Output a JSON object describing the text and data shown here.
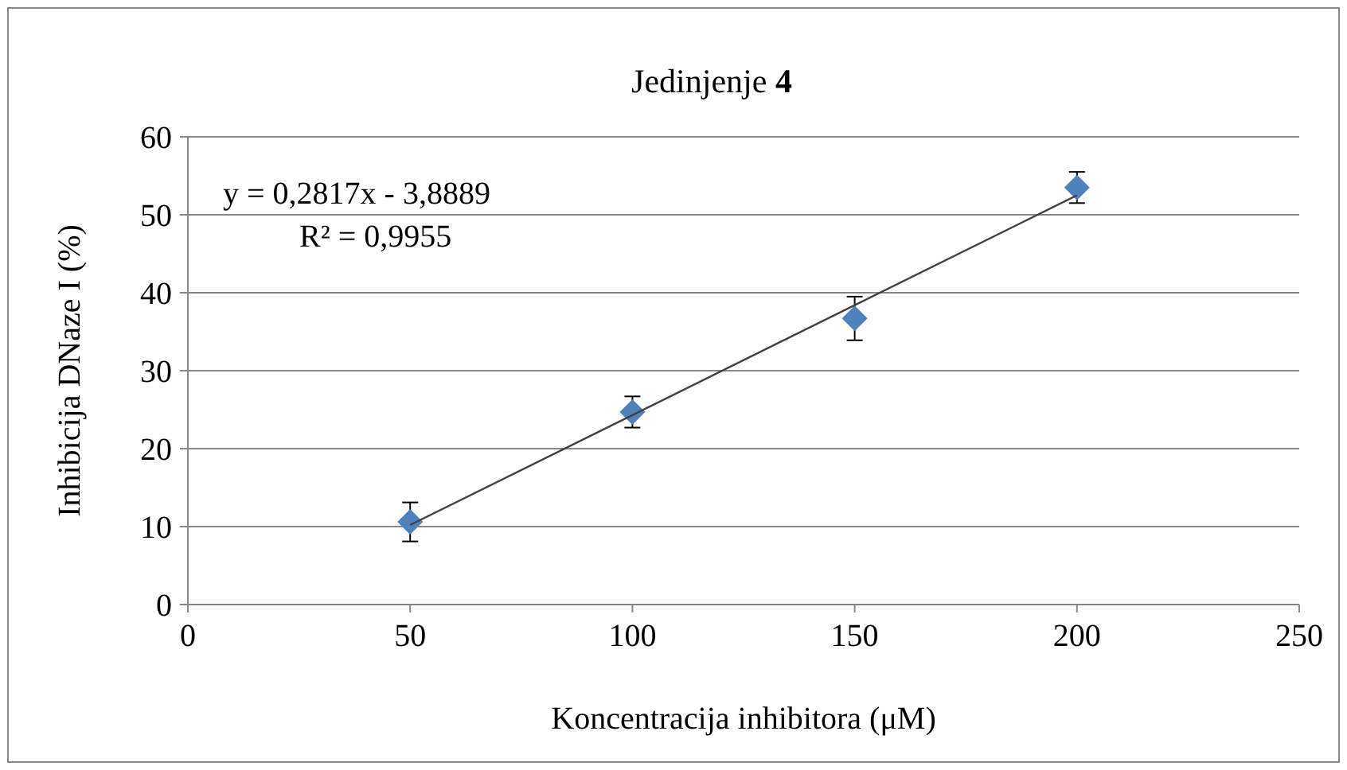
{
  "chart_data": {
    "type": "scatter",
    "title": "Jedinjenje 4",
    "xlabel": "Koncentracija inhibitora (μM)",
    "ylabel": "Inhibicija DNaze I (%)",
    "annotations": [
      "y = 0,2817x - 3,8889",
      "R² = 0,9955"
    ],
    "xlim": [
      0,
      250
    ],
    "xticks": [
      0,
      50,
      100,
      150,
      200,
      250
    ],
    "ylim": [
      0,
      60
    ],
    "yticks": [
      0,
      10,
      20,
      30,
      40,
      50,
      60
    ],
    "grid": "y",
    "series": [
      {
        "color": "#4f81bd",
        "marker": "diamond",
        "x": [
          50,
          100,
          150,
          200
        ],
        "values": [
          10.6,
          24.7,
          36.7,
          53.5
        ],
        "errors": [
          2.5,
          2,
          2.8,
          2
        ]
      },
      {
        "type": "line",
        "color": "#404040",
        "marker": "none",
        "line_style": "solid",
        "x": [
          50,
          200
        ],
        "values": [
          10.2,
          52.5
        ]
      }
    ]
  }
}
